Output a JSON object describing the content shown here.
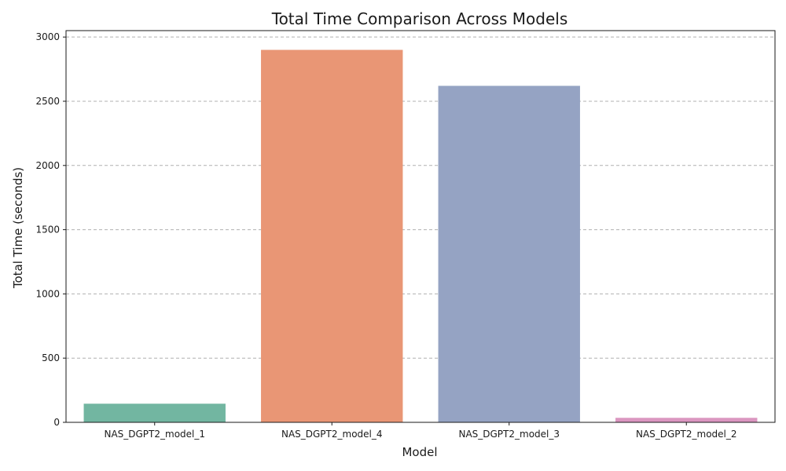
{
  "chart_data": {
    "type": "bar",
    "title": "Total Time Comparison Across Models",
    "xlabel": "Model",
    "ylabel": "Total Time (seconds)",
    "categories": [
      "NAS_DGPT2_model_1",
      "NAS_DGPT2_model_4",
      "NAS_DGPT2_model_3",
      "NAS_DGPT2_model_2"
    ],
    "values": [
      145,
      2900,
      2620,
      35
    ],
    "colors": [
      "#72b6a1",
      "#e99675",
      "#95a3c3",
      "#db96c0"
    ],
    "ylim": [
      0,
      3050
    ],
    "yticks": [
      0,
      500,
      1000,
      1500,
      2000,
      2500,
      3000
    ],
    "grid": "y-dashed",
    "legend": "none"
  }
}
